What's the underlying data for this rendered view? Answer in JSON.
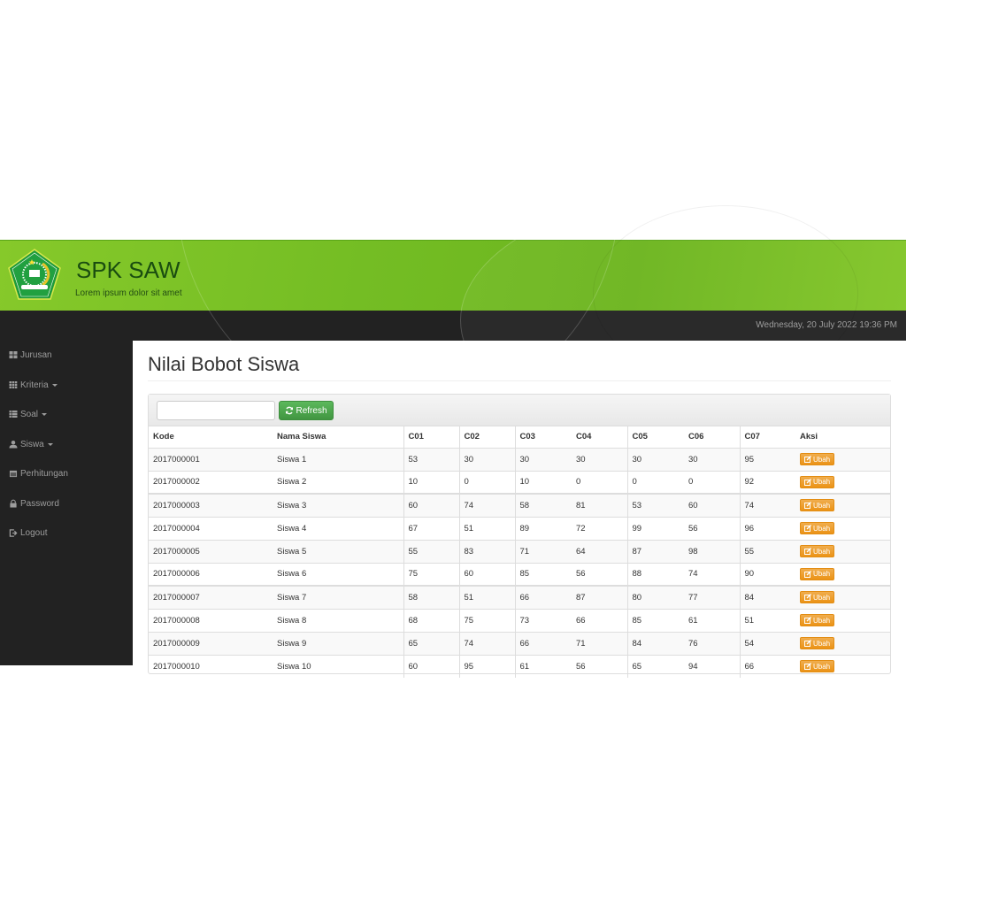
{
  "header": {
    "title": "SPK SAW",
    "subtitle": "Lorem ipsum dolor sit amet",
    "logo_text": "KEMENTERIAN AGAMA"
  },
  "topbar": {
    "datetime": "Wednesday, 20 July 2022 19:36 PM"
  },
  "sidebar": {
    "items": [
      {
        "label": "Jurusan",
        "icon": "th-large-icon",
        "dropdown": false
      },
      {
        "label": "Kriteria",
        "icon": "th-icon",
        "dropdown": true
      },
      {
        "label": "Soal",
        "icon": "th-list-icon",
        "dropdown": true
      },
      {
        "label": "Siswa",
        "icon": "user-icon",
        "dropdown": true
      },
      {
        "label": "Perhitungan",
        "icon": "calendar-icon",
        "dropdown": false
      },
      {
        "label": "Password",
        "icon": "lock-icon",
        "dropdown": false
      },
      {
        "label": "Logout",
        "icon": "log-out-icon",
        "dropdown": false
      }
    ]
  },
  "main": {
    "title": "Nilai Bobot Siswa",
    "search_value": "",
    "refresh_label": "Refresh",
    "action_label": "Ubah",
    "columns": [
      "Kode",
      "Nama Siswa",
      "C01",
      "C02",
      "C03",
      "C04",
      "C05",
      "C06",
      "C07",
      "Aksi"
    ],
    "rows": [
      [
        "2017000001",
        "Siswa 1",
        "53",
        "30",
        "30",
        "30",
        "30",
        "30",
        "95"
      ],
      [
        "2017000002",
        "Siswa 2",
        "10",
        "0",
        "10",
        "0",
        "0",
        "0",
        "92"
      ],
      [
        "2017000003",
        "Siswa 3",
        "60",
        "74",
        "58",
        "81",
        "53",
        "60",
        "74"
      ],
      [
        "2017000004",
        "Siswa 4",
        "67",
        "51",
        "89",
        "72",
        "99",
        "56",
        "96"
      ],
      [
        "2017000005",
        "Siswa 5",
        "55",
        "83",
        "71",
        "64",
        "87",
        "98",
        "55"
      ],
      [
        "2017000006",
        "Siswa 6",
        "75",
        "60",
        "85",
        "56",
        "88",
        "74",
        "90"
      ],
      [
        "2017000007",
        "Siswa 7",
        "58",
        "51",
        "66",
        "87",
        "80",
        "77",
        "84"
      ],
      [
        "2017000008",
        "Siswa 8",
        "68",
        "75",
        "73",
        "66",
        "85",
        "61",
        "51"
      ],
      [
        "2017000009",
        "Siswa 9",
        "65",
        "74",
        "66",
        "71",
        "84",
        "76",
        "54"
      ],
      [
        "2017000010",
        "Siswa 10",
        "60",
        "95",
        "61",
        "56",
        "65",
        "94",
        "66"
      ]
    ]
  },
  "colors": {
    "header_green": "#74bd24",
    "dark": "#222222",
    "refresh": "#5cb85c",
    "action": "#f0ad4e"
  }
}
